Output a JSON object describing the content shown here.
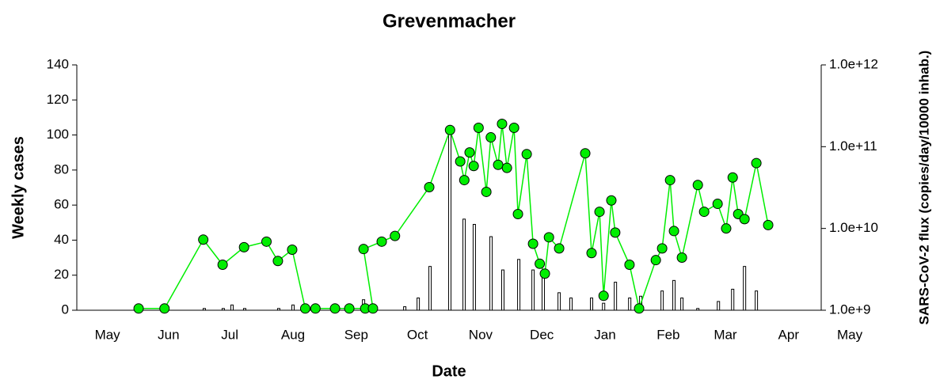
{
  "chart_data": {
    "type": "combo",
    "title": "Grevenmacher",
    "x_label": "Date",
    "y_label": "Weekly cases",
    "y2_label": "SARS-CoV-2 flux (copies/day/10000 inhab.)",
    "xlim": [
      0,
      365
    ],
    "xticks": [
      {
        "value": 15,
        "label": "May"
      },
      {
        "value": 45,
        "label": "Jun"
      },
      {
        "value": 75,
        "label": "Jul"
      },
      {
        "value": 106,
        "label": "Aug"
      },
      {
        "value": 137,
        "label": "Sep"
      },
      {
        "value": 167,
        "label": "Oct"
      },
      {
        "value": 198,
        "label": "Nov"
      },
      {
        "value": 228,
        "label": "Dec"
      },
      {
        "value": 259,
        "label": "Jan"
      },
      {
        "value": 290,
        "label": "Feb"
      },
      {
        "value": 318,
        "label": "Mar"
      },
      {
        "value": 349,
        "label": "Apr"
      },
      {
        "value": 379,
        "label": "May"
      }
    ],
    "ylim": [
      0,
      140
    ],
    "yticks": [
      0,
      20,
      40,
      60,
      80,
      100,
      120,
      140
    ],
    "y2lim": [
      1000000000,
      1000000000000
    ],
    "y2_log": true,
    "y2ticks": [
      {
        "value": 1000000000,
        "label": "1.0e+9"
      },
      {
        "value": 10000000000,
        "label": "1.0e+10"
      },
      {
        "value": 100000000000,
        "label": "1.0e+11"
      },
      {
        "value": 1000000000000,
        "label": "1.0e+12"
      }
    ],
    "series": [
      {
        "type": "bar",
        "color": "#ffffff",
        "x": [
          62.5,
          71.8,
          76.1,
          82.3,
          99,
          106,
          112.6,
          116.9,
          140.6,
          160.8,
          167.4,
          173.2,
          182.9,
          189.9,
          194.9,
          203.1,
          208.9,
          216.7,
          223.7,
          228.7,
          236.5,
          242.3,
          252.4,
          258.3,
          264.1,
          271.1,
          276.5,
          287,
          292.8,
          296.7,
          304.5,
          314.6,
          321.6,
          327.4,
          333.2
        ],
        "values": [
          1,
          1,
          3,
          1,
          1,
          3,
          3,
          3,
          6,
          2,
          7,
          25,
          103,
          52,
          49,
          42,
          23,
          29,
          23,
          21,
          10,
          7,
          7,
          4,
          16,
          7,
          8,
          11,
          17,
          7,
          1,
          5,
          12,
          25,
          11
        ]
      },
      {
        "type": "line",
        "axis": "y2",
        "color": "#00ee00",
        "x": [
          30.3,
          43,
          62,
          71.5,
          82,
          93,
          98.6,
          105.6,
          112,
          117,
          126.6,
          133.6,
          141.4,
          145.2,
          140.6,
          149.5,
          156,
          172.8,
          183,
          188,
          190,
          192.6,
          194.6,
          197,
          200.8,
          203,
          206.6,
          208.5,
          210.9,
          214.4,
          216.3,
          220.6,
          223.7,
          227,
          229.5,
          231.5,
          236.5,
          249.3,
          252.4,
          256.3,
          258.3,
          262.1,
          264,
          271,
          275.7,
          283.9,
          287,
          290.9,
          292.8,
          296.7,
          304.5,
          307.6,
          314.2,
          318.4,
          321.6,
          324.3,
          327.4,
          333.2,
          339
        ],
        "values": [
          1050000000,
          1050000000,
          7300000000,
          3600000000,
          5900000000,
          6900000000,
          4000000000,
          5500000000,
          1050000000,
          1050000000,
          1050000000,
          1050000000,
          1050000000,
          1050000000,
          5600000000,
          6900000000,
          8100000000,
          32000000000,
          160000000000,
          66000000000,
          39000000000,
          85000000000,
          58000000000,
          170000000000,
          28000000000,
          130000000000,
          60000000000,
          190000000000,
          55000000000,
          170000000000,
          15000000000,
          81000000000,
          6500000000,
          3700000000,
          2800000000,
          7800000000,
          5700000000,
          83000000000,
          5000000000,
          16000000000,
          1500000000,
          22000000000,
          8900000000,
          3600000000,
          1050000000,
          4100000000,
          5700000000,
          39000000000,
          9300000000,
          4400000000,
          34000000000,
          16000000000,
          20000000000,
          10000000000,
          42000000000,
          15000000000,
          13000000000,
          63000000000,
          11000000000
        ]
      }
    ]
  }
}
